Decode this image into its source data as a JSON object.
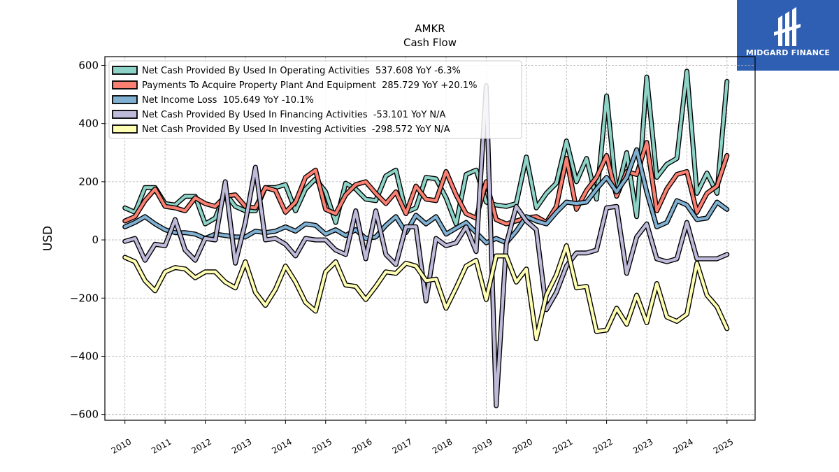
{
  "logo": {
    "text": "MIDGARD FINANCE",
    "color": "#2f5fb3"
  },
  "chart_data": {
    "type": "line",
    "title": "AMKR",
    "subtitle": "Cash Flow",
    "xlabel": "",
    "ylabel": "USD",
    "xlim": [
      2009.5,
      2025.7
    ],
    "ylim": [
      -620,
      630
    ],
    "y_ticks": [
      -600,
      -400,
      -200,
      0,
      200,
      400,
      600
    ],
    "y_tick_labels": [
      "−600",
      "−400",
      "−200",
      "0",
      "200",
      "400",
      "600"
    ],
    "x_ticks": [
      2010,
      2011,
      2012,
      2013,
      2014,
      2015,
      2016,
      2017,
      2018,
      2019,
      2020,
      2021,
      2022,
      2023,
      2024,
      2025
    ],
    "x_tick_labels": [
      "2010",
      "2011",
      "2012",
      "2013",
      "2014",
      "2015",
      "2016",
      "2017",
      "2018",
      "2019",
      "2020",
      "2021",
      "2022",
      "2023",
      "2024",
      "2025"
    ],
    "grid": true,
    "legend_position": "top-left",
    "x": [
      2010.0,
      2010.25,
      2010.5,
      2010.75,
      2011.0,
      2011.25,
      2011.5,
      2011.75,
      2012.0,
      2012.25,
      2012.5,
      2012.75,
      2013.0,
      2013.25,
      2013.5,
      2013.75,
      2014.0,
      2014.25,
      2014.5,
      2014.75,
      2015.0,
      2015.25,
      2015.5,
      2015.75,
      2016.0,
      2016.25,
      2016.5,
      2016.75,
      2017.0,
      2017.25,
      2017.5,
      2017.75,
      2018.0,
      2018.25,
      2018.5,
      2018.75,
      2019.0,
      2019.25,
      2019.5,
      2019.75,
      2020.0,
      2020.25,
      2020.5,
      2020.75,
      2021.0,
      2021.25,
      2021.5,
      2021.75,
      2022.0,
      2022.25,
      2022.5,
      2022.75,
      2023.0,
      2023.25,
      2023.5,
      2023.75,
      2024.0,
      2024.25,
      2024.5,
      2024.75,
      2025.0
    ],
    "series": [
      {
        "name": "Net Cash Provided By Used In Operating Activities",
        "legend": "Net Cash Provided By Used In Operating Activities  537.608 YoY -6.3%",
        "color": "#8dd3c7",
        "values": [
          110,
          95,
          180,
          180,
          125,
          120,
          150,
          150,
          55,
          75,
          160,
          115,
          100,
          100,
          180,
          180,
          190,
          100,
          175,
          210,
          165,
          60,
          195,
          175,
          140,
          135,
          220,
          240,
          95,
          110,
          215,
          210,
          145,
          55,
          225,
          240,
          130,
          120,
          115,
          125,
          285,
          110,
          160,
          195,
          340,
          200,
          280,
          140,
          495,
          155,
          300,
          80,
          560,
          215,
          260,
          280,
          580,
          160,
          230,
          160,
          545
        ]
      },
      {
        "name": "Payments To Acquire Property Plant And Equipment",
        "legend": "Payments To Acquire Property Plant And Equipment  285.729 YoY +20.1%",
        "color": "#fb8072",
        "values": [
          65,
          80,
          135,
          175,
          115,
          110,
          100,
          145,
          125,
          115,
          150,
          155,
          115,
          110,
          180,
          170,
          95,
          130,
          215,
          240,
          105,
          90,
          155,
          190,
          200,
          160,
          125,
          165,
          90,
          185,
          140,
          135,
          235,
          155,
          90,
          75,
          200,
          70,
          55,
          65,
          75,
          80,
          60,
          115,
          280,
          105,
          170,
          215,
          290,
          150,
          235,
          225,
          335,
          100,
          175,
          225,
          235,
          95,
          160,
          185,
          290
        ]
      },
      {
        "name": "Net Income Loss",
        "legend": "Net Income Loss  105.649 YoY -10.1%",
        "color": "#80b1d3",
        "values": [
          45,
          60,
          80,
          55,
          35,
          25,
          25,
          20,
          5,
          20,
          15,
          10,
          10,
          30,
          25,
          30,
          45,
          30,
          55,
          50,
          20,
          35,
          15,
          35,
          5,
          10,
          50,
          80,
          25,
          85,
          55,
          80,
          20,
          40,
          60,
          25,
          -10,
          5,
          -10,
          30,
          80,
          65,
          55,
          95,
          130,
          125,
          130,
          175,
          215,
          165,
          215,
          310,
          165,
          45,
          60,
          135,
          120,
          70,
          75,
          130,
          105
        ]
      },
      {
        "name": "Net Cash Provided By Used In Financing Activities",
        "legend": "Net Cash Provided By Used In Financing Activities  -53.101 YoY N/A",
        "color": "#bebada",
        "values": [
          -5,
          5,
          -70,
          -15,
          -20,
          70,
          -35,
          -70,
          5,
          0,
          200,
          -80,
          60,
          250,
          0,
          5,
          -15,
          -55,
          5,
          0,
          0,
          -35,
          -50,
          100,
          -65,
          100,
          -50,
          -85,
          45,
          45,
          -210,
          5,
          -20,
          -10,
          45,
          -40,
          530,
          -570,
          -15,
          115,
          65,
          35,
          -240,
          -180,
          -90,
          -45,
          -45,
          -35,
          110,
          115,
          -115,
          10,
          55,
          -65,
          -75,
          -65,
          60,
          -65,
          -65,
          -65,
          -50
        ]
      },
      {
        "name": "Net Cash Provided By Used In Investing Activities",
        "legend": "Net Cash Provided By Used In Investing Activities  -298.572 YoY N/A",
        "color": "#ffffb3",
        "values": [
          -60,
          -75,
          -140,
          -175,
          -110,
          -95,
          -100,
          -130,
          -110,
          -110,
          -145,
          -165,
          -75,
          -180,
          -225,
          -170,
          -90,
          -145,
          -215,
          -245,
          -110,
          -75,
          -155,
          -160,
          -205,
          -160,
          -110,
          -115,
          -80,
          -90,
          -140,
          -135,
          -235,
          -165,
          -90,
          -70,
          -205,
          -55,
          -55,
          -145,
          -100,
          -340,
          -190,
          -120,
          -20,
          -165,
          -160,
          -315,
          -310,
          -235,
          -290,
          -190,
          -285,
          -150,
          -265,
          -280,
          -255,
          -80,
          -190,
          -230,
          -305
        ]
      }
    ]
  }
}
